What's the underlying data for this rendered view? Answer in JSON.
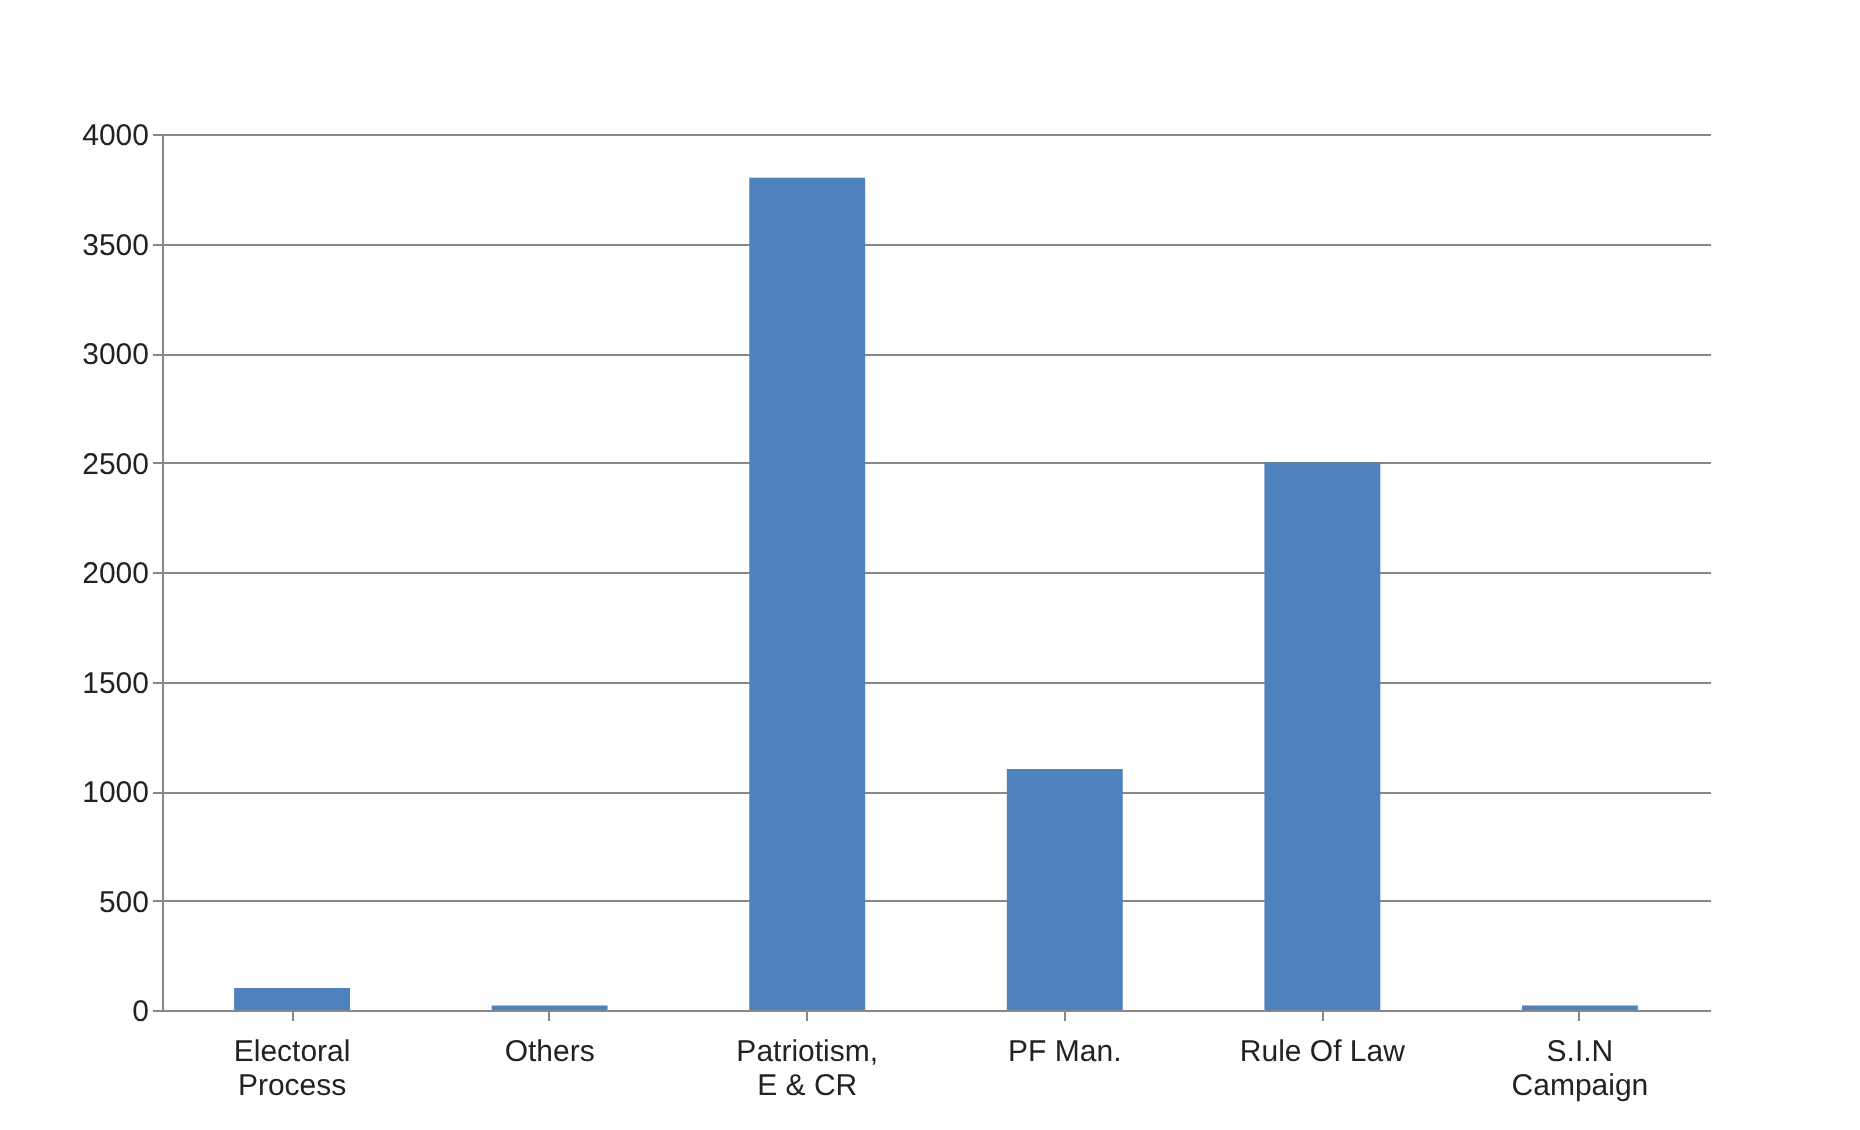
{
  "chart_data": {
    "type": "bar",
    "categories": [
      "Electoral Process",
      "Others",
      "Patriotism, E & CR",
      "PF Man.",
      "Rule Of Law",
      "S.I.N Campaign"
    ],
    "values": [
      100,
      20,
      3800,
      1100,
      2500,
      20
    ],
    "color": "#4f81bd",
    "ylim": [
      0,
      4000
    ],
    "yticks": [
      0,
      500,
      1000,
      1500,
      2000,
      2500,
      3000,
      3500,
      4000
    ],
    "grid": "y"
  }
}
